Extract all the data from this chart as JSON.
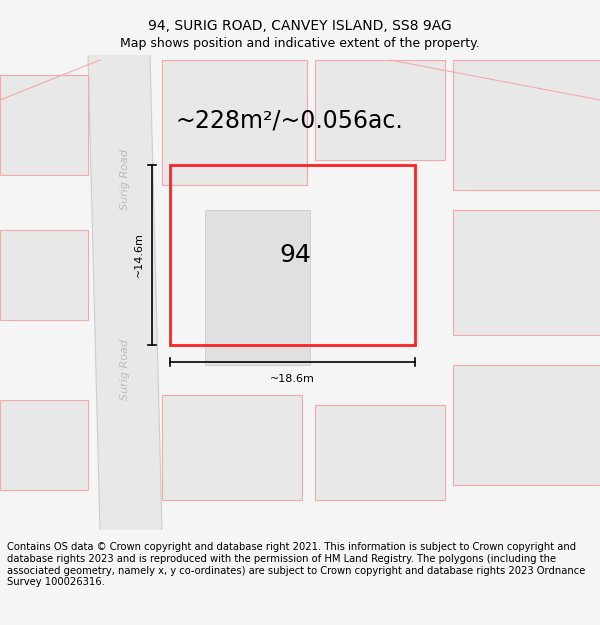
{
  "title": "94, SURIG ROAD, CANVEY ISLAND, SS8 9AG",
  "subtitle": "Map shows position and indicative extent of the property.",
  "area_text": "~228m²/~0.056ac.",
  "property_number": "94",
  "width_label": "~18.6m",
  "height_label": "~14.6m",
  "road_label": "Surig Road",
  "footer": "Contains OS data © Crown copyright and database right 2021. This information is subject to Crown copyright and database rights 2023 and is reproduced with the permission of HM Land Registry. The polygons (including the associated geometry, namely x, y co-ordinates) are subject to Crown copyright and database rights 2023 Ordnance Survey 100026316.",
  "bg_color": "#f5f5f5",
  "map_bg": "#f5f5f5",
  "plot_fill": "#e8e8e8",
  "road_fill": "#e0e0e0",
  "red_outline": "#ff2222",
  "light_red": "#f5aaaa",
  "title_fontsize": 10,
  "subtitle_fontsize": 9,
  "area_fontsize": 17,
  "label_fontsize": 8,
  "road_fontsize": 8,
  "footer_fontsize": 7.2,
  "number_fontsize": 18
}
